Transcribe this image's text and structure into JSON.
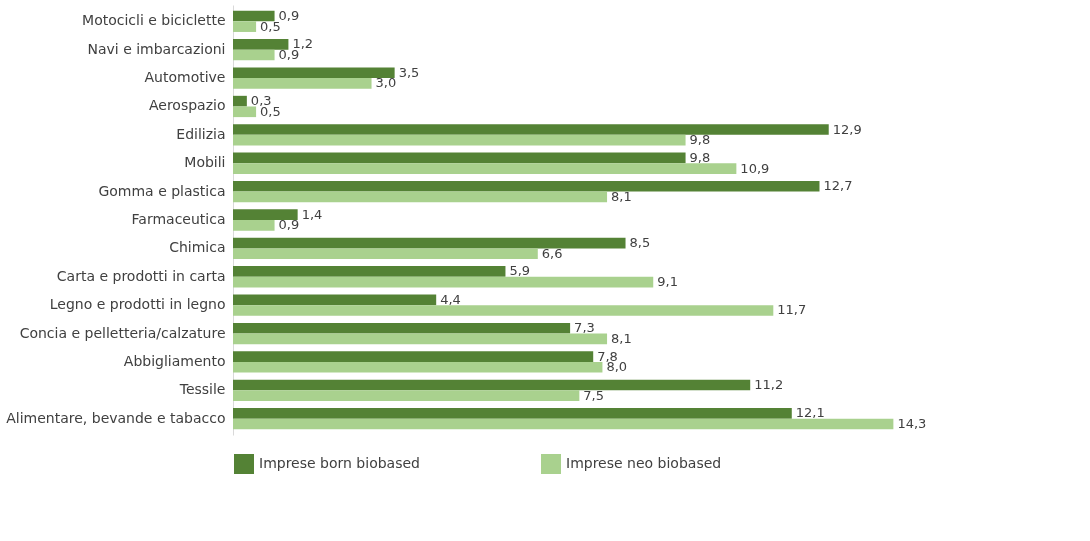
{
  "chart_data": {
    "type": "bar",
    "orientation": "horizontal",
    "legend": "bottom",
    "grid": false,
    "categories": [
      "Motocicli e biciclette",
      "Navi e imbarcazioni",
      "Automotive",
      "Aerospazio",
      "Edilizia",
      "Mobili",
      "Gomma e plastica",
      "Farmaceutica",
      "Chimica",
      "Carta e prodotti in carta",
      "Legno e prodotti in legno",
      "Concia e pelletteria/calzature",
      "Abbigliamento",
      "Tessile",
      "Alimentare, bevande e tabacco"
    ],
    "series": [
      {
        "name": "Imprese born biobased",
        "color": "#548235",
        "values": [
          0.9,
          1.2,
          3.5,
          0.3,
          12.9,
          9.8,
          12.7,
          1.4,
          8.5,
          5.9,
          4.4,
          7.3,
          7.8,
          11.2,
          12.1
        ],
        "value_labels": [
          "0,9",
          "1,2",
          "3,5",
          "0,3",
          "12,9",
          "9,8",
          "12,7",
          "1,4",
          "8,5",
          "5,9",
          "4,4",
          "7,3",
          "7,8",
          "11,2",
          "12,1"
        ]
      },
      {
        "name": "Imprese neo biobased",
        "color": "#a9d18e",
        "values": [
          0.5,
          0.9,
          3.0,
          0.5,
          9.8,
          10.9,
          8.1,
          0.9,
          6.6,
          9.1,
          11.7,
          8.1,
          8.0,
          7.5,
          14.3
        ],
        "value_labels": [
          "0,5",
          "0,9",
          "3,0",
          "0,5",
          "9,8",
          "10,9",
          "8,1",
          "0,9",
          "6,6",
          "9,1",
          "11,7",
          "8,1",
          "8,0",
          "7,5",
          "14,3"
        ]
      }
    ]
  }
}
